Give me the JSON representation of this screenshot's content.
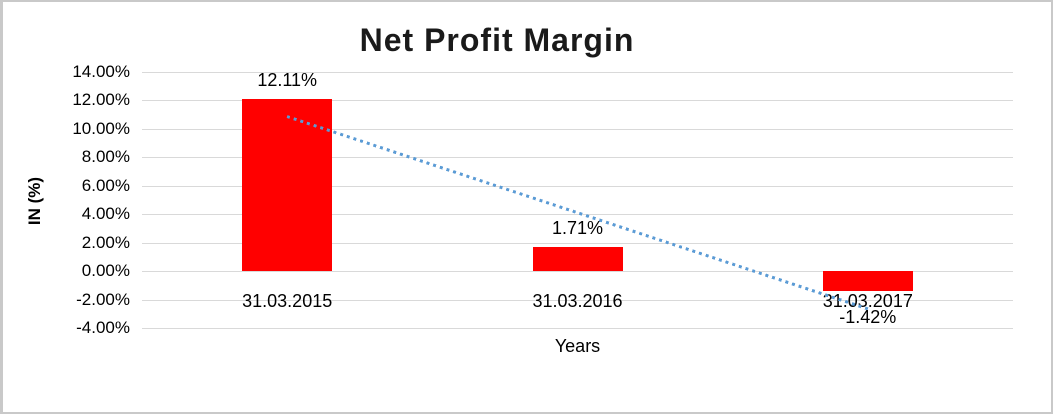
{
  "chart_data": {
    "type": "bar",
    "title": "Net Profit Margin",
    "xlabel": "Years",
    "ylabel": "IN (%)",
    "categories": [
      "31.03.2015",
      "31.03.2016",
      "31.03.2017"
    ],
    "values": [
      12.11,
      1.71,
      -1.42
    ],
    "data_labels": [
      "12.11%",
      "1.71%",
      "-1.42%"
    ],
    "ylim": [
      -4,
      14
    ],
    "ytick_step": 2,
    "ytick_labels": [
      "14.00%",
      "12.00%",
      "10.00%",
      "8.00%",
      "6.00%",
      "4.00%",
      "2.00%",
      "0.00%",
      "-2.00%",
      "-4.00%"
    ],
    "grid": true,
    "legend": false,
    "bar_color": "#FF0000",
    "gridline_color": "#D9D9D9",
    "text_color": "#000000",
    "trendline": {
      "style": "dotted",
      "color": "#5B9BD5",
      "start_value": 10.9,
      "end_value": -2.63
    }
  }
}
